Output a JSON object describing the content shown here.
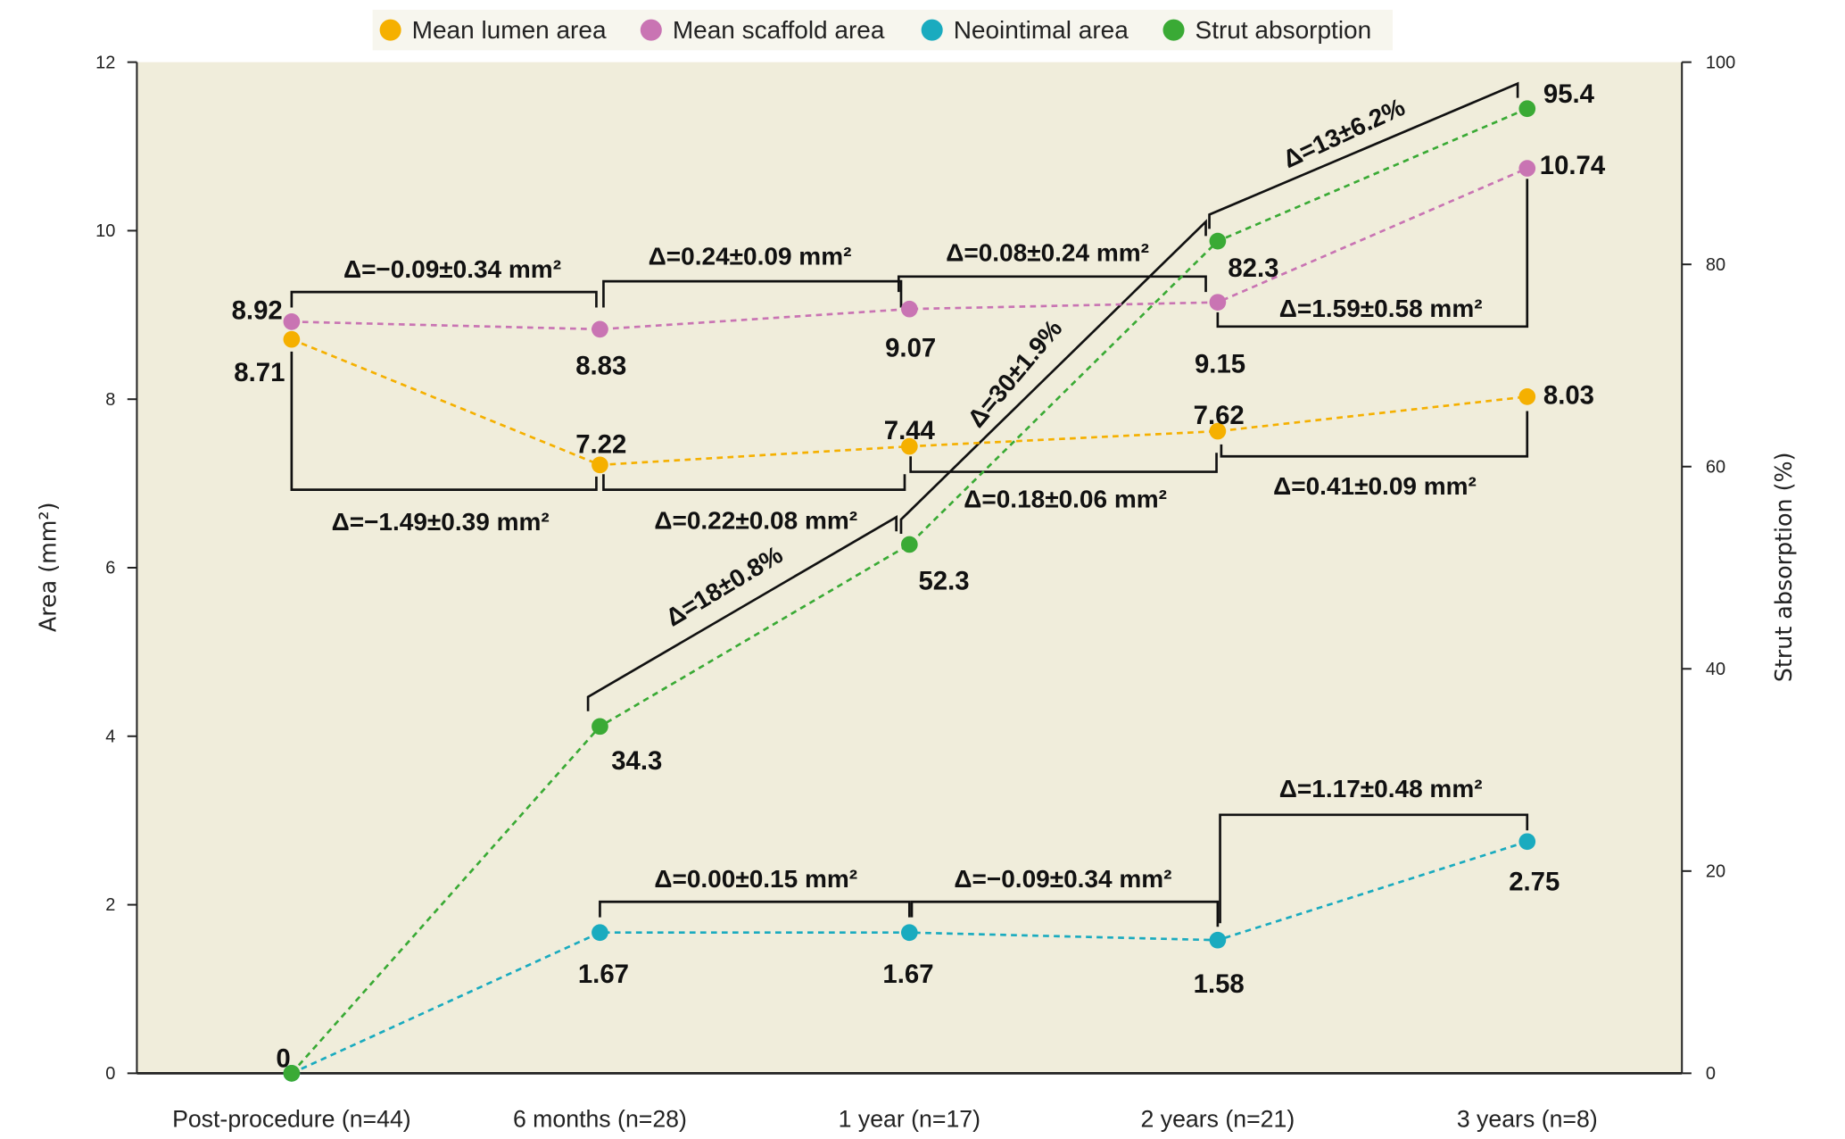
{
  "chart_data": {
    "type": "line",
    "title": "",
    "categories": [
      "Post-procedure (n=44)",
      "6 months (n=28)",
      "1 year (n=17)",
      "2 years (n=21)",
      "3 years (n=8)"
    ],
    "ylabel": "Area (mm²)",
    "y2label": "Strut absorption (%)",
    "ylim": [
      0,
      12
    ],
    "y2lim": [
      0,
      100
    ],
    "yticks": [
      "0",
      "2",
      "4",
      "6",
      "8",
      "10",
      "12"
    ],
    "y2ticks": [
      "0",
      "20",
      "40",
      "60",
      "80",
      "100"
    ],
    "legend_position": "top-center",
    "series": [
      {
        "name": "Mean lumen area",
        "axis": "left",
        "color": "#f5b000",
        "values": [
          8.71,
          7.22,
          7.44,
          7.62,
          8.03
        ],
        "labels": [
          "8.71",
          "7.22",
          "7.44",
          "7.62",
          "8.03"
        ]
      },
      {
        "name": "Mean scaffold area",
        "axis": "left",
        "color": "#c974b3",
        "values": [
          8.92,
          8.83,
          9.07,
          9.15,
          10.74
        ],
        "labels": [
          "8.92",
          "8.83",
          "9.07",
          "9.15",
          "10.74"
        ]
      },
      {
        "name": "Neointimal area",
        "axis": "left",
        "color": "#1aabbf",
        "values": [
          0,
          1.67,
          1.67,
          1.58,
          2.75
        ],
        "labels": [
          "",
          "1.67",
          "1.67",
          "1.58",
          "2.75"
        ]
      },
      {
        "name": "Strut absorption",
        "axis": "right",
        "color": "#3aaa35",
        "values": [
          0,
          34.3,
          52.3,
          82.3,
          95.4
        ],
        "labels": [
          "0",
          "34.3",
          "52.3",
          "82.3",
          "95.4"
        ]
      }
    ],
    "annotations": [
      {
        "series": "Mean scaffold area",
        "from": 0,
        "to": 1,
        "text": "Δ=−0.09±0.34 mm²"
      },
      {
        "series": "Mean scaffold area",
        "from": 1,
        "to": 2,
        "text": "Δ=0.24±0.09 mm²"
      },
      {
        "series": "Mean scaffold area",
        "from": 2,
        "to": 3,
        "text": "Δ=0.08±0.24 mm²"
      },
      {
        "series": "Mean scaffold area",
        "from": 3,
        "to": 4,
        "text": "Δ=1.59±0.58 mm²"
      },
      {
        "series": "Mean lumen area",
        "from": 0,
        "to": 1,
        "text": "Δ=−1.49±0.39 mm²"
      },
      {
        "series": "Mean lumen area",
        "from": 1,
        "to": 2,
        "text": "Δ=0.22±0.08 mm²"
      },
      {
        "series": "Mean lumen area",
        "from": 2,
        "to": 3,
        "text": "Δ=0.18±0.06 mm²"
      },
      {
        "series": "Mean lumen area",
        "from": 3,
        "to": 4,
        "text": "Δ=0.41±0.09 mm²"
      },
      {
        "series": "Neointimal area",
        "from": 1,
        "to": 2,
        "text": "Δ=0.00±0.15 mm²"
      },
      {
        "series": "Neointimal area",
        "from": 2,
        "to": 3,
        "text": "Δ=−0.09±0.34 mm²"
      },
      {
        "series": "Neointimal area",
        "from": 3,
        "to": 4,
        "text": "Δ=1.17±0.48 mm²"
      },
      {
        "series": "Strut absorption",
        "from": 1,
        "to": 2,
        "text": "Δ=18±0.8%"
      },
      {
        "series": "Strut absorption",
        "from": 2,
        "to": 3,
        "text": "Δ=30±1.9%"
      },
      {
        "series": "Strut absorption",
        "from": 3,
        "to": 4,
        "text": "Δ=13±6.2%"
      }
    ]
  },
  "colors": {
    "plot_background": "#f0eddb",
    "legend_background": "#f7f6ee",
    "bracket": "#111111"
  }
}
